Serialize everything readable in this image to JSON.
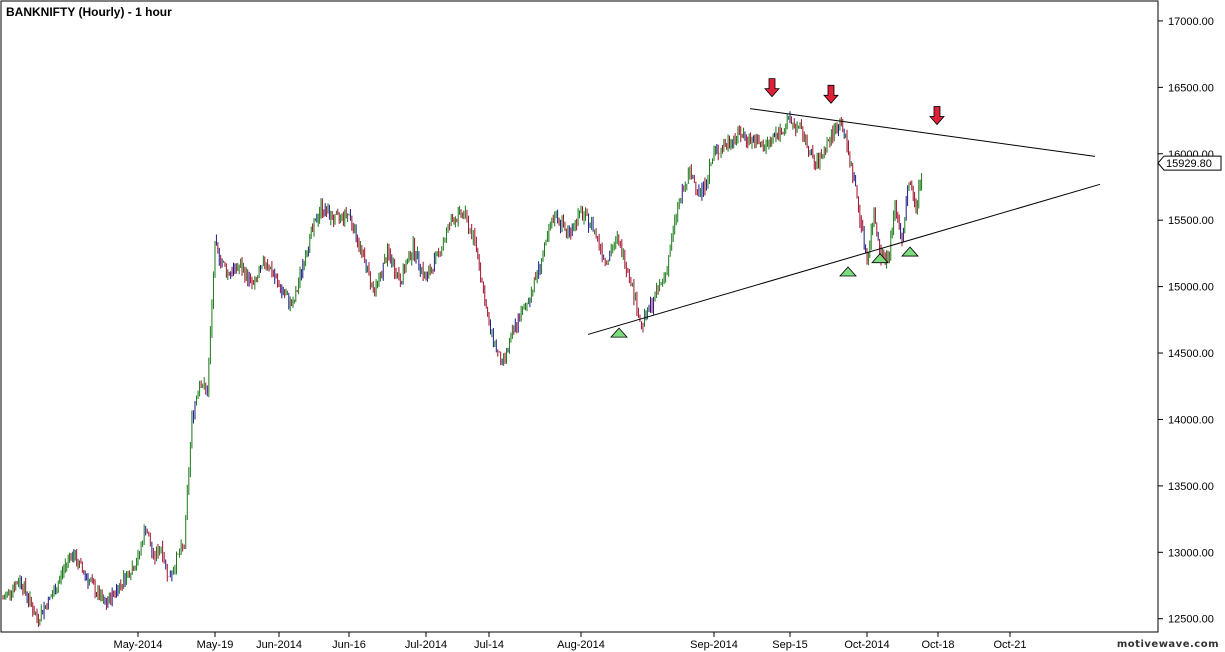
{
  "chart_data": {
    "type": "candlestick",
    "title": "BANKNIFTY (Hourly) - 1 hour",
    "ylim": [
      12400,
      17150
    ],
    "y_ticks": [
      12500,
      13000,
      13500,
      14000,
      14500,
      15000,
      15500,
      16000,
      16500,
      17000
    ],
    "y_tick_labels": [
      "12500.00",
      "13000.00",
      "13500.00",
      "14000.00",
      "14500.00",
      "15000.00",
      "15500.00",
      "16000.00",
      "16500.00",
      "17000.00"
    ],
    "x_labels": [
      "May-2014",
      "May-19",
      "Jun-2014",
      "Jun-16",
      "Jul-2014",
      "Jul-14",
      "Aug-2014",
      "Sep-2014",
      "Sep-15",
      "Oct-2014",
      "Oct-18",
      "Oct-21"
    ],
    "last_price": 15929.8,
    "last_price_label": "15929.80",
    "grid": false,
    "price_path": [
      {
        "d": "Apr-2014",
        "v": 12650
      },
      {
        "d": "Apr-2014",
        "v": 12800
      },
      {
        "d": "Apr-2014",
        "v": 12500
      },
      {
        "d": "Apr-2014",
        "v": 12700
      },
      {
        "d": "Apr-2014",
        "v": 13000
      },
      {
        "d": "Apr-2014",
        "v": 12800
      },
      {
        "d": "Apr-2014",
        "v": 12600
      },
      {
        "d": "May-2014",
        "v": 12950
      },
      {
        "d": "May-2014",
        "v": 13200
      },
      {
        "d": "May-2014",
        "v": 12950
      },
      {
        "d": "May-2014",
        "v": 13050
      },
      {
        "d": "May-2014",
        "v": 12800
      },
      {
        "d": "May-2014",
        "v": 12950
      },
      {
        "d": "May-2014",
        "v": 13050
      },
      {
        "d": "May-2014",
        "v": 14000
      },
      {
        "d": "May-2014",
        "v": 14300
      },
      {
        "d": "May-2014",
        "v": 14200
      },
      {
        "d": "May-19",
        "v": 15300
      },
      {
        "d": "May-19",
        "v": 15100
      },
      {
        "d": "May-19",
        "v": 15150
      },
      {
        "d": "May-19",
        "v": 15000
      },
      {
        "d": "May-19",
        "v": 15200
      },
      {
        "d": "Jun-2014",
        "v": 15000
      },
      {
        "d": "Jun-2014",
        "v": 14850
      },
      {
        "d": "Jun-2014",
        "v": 15300
      },
      {
        "d": "Jun-2014",
        "v": 15600
      },
      {
        "d": "Jun-2014",
        "v": 15500
      },
      {
        "d": "Jun-16",
        "v": 15550
      },
      {
        "d": "Jun-16",
        "v": 15250
      },
      {
        "d": "Jun-16",
        "v": 14950
      },
      {
        "d": "Jun-16",
        "v": 15250
      },
      {
        "d": "Jun-16",
        "v": 15050
      },
      {
        "d": "Jun-16",
        "v": 15300
      },
      {
        "d": "Jul-2014",
        "v": 15050
      },
      {
        "d": "Jul-2014",
        "v": 15250
      },
      {
        "d": "Jul-2014",
        "v": 15500
      },
      {
        "d": "Jul-2014",
        "v": 15550
      },
      {
        "d": "Jul-2014",
        "v": 15300
      },
      {
        "d": "Jul-14",
        "v": 14700
      },
      {
        "d": "Jul-14",
        "v": 14400
      },
      {
        "d": "Jul-14",
        "v": 14700
      },
      {
        "d": "Jul-14",
        "v": 14900
      },
      {
        "d": "Jul-14",
        "v": 15200
      },
      {
        "d": "Jul-14",
        "v": 15550
      },
      {
        "d": "Jul-14",
        "v": 15400
      },
      {
        "d": "Aug-2014",
        "v": 15550
      },
      {
        "d": "Aug-2014",
        "v": 15450
      },
      {
        "d": "Aug-2014",
        "v": 15200
      },
      {
        "d": "Aug-2014",
        "v": 15350
      },
      {
        "d": "Aug-2014",
        "v": 15100
      },
      {
        "d": "Aug-2014",
        "v": 14700
      },
      {
        "d": "Aug-2014",
        "v": 14900
      },
      {
        "d": "Aug-2014",
        "v": 15100
      },
      {
        "d": "Aug-2014",
        "v": 15600
      },
      {
        "d": "Aug-2014",
        "v": 15850
      },
      {
        "d": "Aug-2014",
        "v": 15700
      },
      {
        "d": "Sep-2014",
        "v": 16000
      },
      {
        "d": "Sep-2014",
        "v": 16150
      },
      {
        "d": "Sep-2014",
        "v": 16050
      },
      {
        "d": "Sep-15",
        "v": 16250
      },
      {
        "d": "Sep-15",
        "v": 16150
      },
      {
        "d": "Sep-15",
        "v": 15900
      },
      {
        "d": "Sep-15",
        "v": 16100
      },
      {
        "d": "Sep-15",
        "v": 16250
      },
      {
        "d": "Sep-15",
        "v": 15800
      },
      {
        "d": "Oct-2014",
        "v": 15200
      },
      {
        "d": "Oct-2014",
        "v": 15550
      },
      {
        "d": "Oct-2014",
        "v": 15250
      },
      {
        "d": "Oct-2014",
        "v": 15200
      },
      {
        "d": "Oct-2014",
        "v": 15600
      },
      {
        "d": "Oct-2014",
        "v": 15350
      },
      {
        "d": "Oct-2014",
        "v": 15800
      },
      {
        "d": "Oct-2014",
        "v": 15600
      },
      {
        "d": "Oct-2014",
        "v": 15930
      }
    ],
    "trendlines": [
      {
        "name": "upper",
        "from": {
          "d": "Sep-2014",
          "v": 16340
        },
        "to": {
          "d": "Oct-21",
          "v": 15980
        }
      },
      {
        "name": "lower",
        "from": {
          "d": "Aug-2014",
          "v": 14640
        },
        "to": {
          "d": "Oct-21",
          "v": 15770
        }
      }
    ],
    "down_markers": [
      {
        "d": "Sep-15",
        "v": 16430
      },
      {
        "d": "Sep-15",
        "v": 16380
      },
      {
        "d": "Oct-18",
        "v": 16220
      }
    ],
    "up_markers": [
      {
        "d": "Aug-2014",
        "v": 14620
      },
      {
        "d": "Oct-2014",
        "v": 15080
      },
      {
        "d": "Oct-2014",
        "v": 15180
      },
      {
        "d": "Oct-2014",
        "v": 15230
      }
    ],
    "colors": {
      "up_candle": "#1a7a1a",
      "down_candle": "#a0102a",
      "neutral_candle": "#1a1a8a",
      "up_marker_fill": "#7ddc7d",
      "down_marker_fill": "#e0203a",
      "axis": "#000000",
      "background": "#ffffff"
    }
  },
  "brand": "motivewave.com"
}
